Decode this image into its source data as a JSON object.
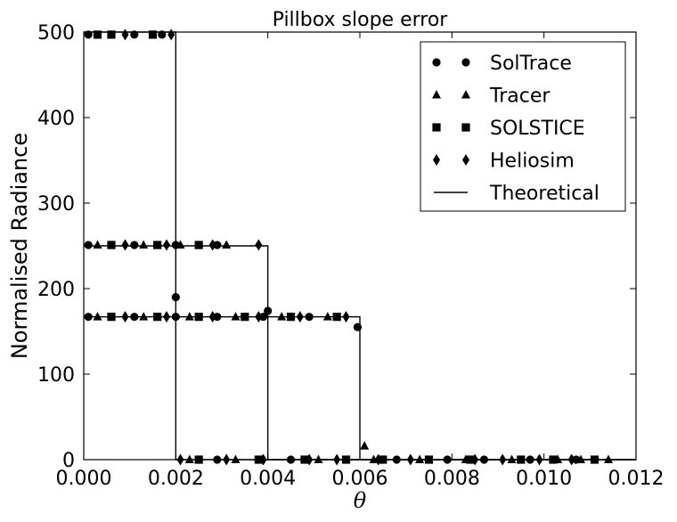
{
  "chart_data": {
    "type": "scatter",
    "title": "Pillbox slope error",
    "xlabel": "θ",
    "ylabel": "Normalised Radiance",
    "xlim": [
      0.0,
      0.012
    ],
    "ylim": [
      0,
      500
    ],
    "x_ticks": [
      "0.000",
      "0.002",
      "0.004",
      "0.006",
      "0.008",
      "0.010",
      "0.012"
    ],
    "y_ticks": [
      "0",
      "100",
      "200",
      "300",
      "400",
      "500"
    ],
    "grid": false,
    "legend_position": "top-right",
    "colors": {
      "marks": "#000000",
      "background": "#ffffff"
    },
    "series": [
      {
        "name": "SolTrace",
        "marker": "circle",
        "points": [
          [
            0.0001,
            497
          ],
          [
            0.0011,
            497
          ],
          [
            0.0017,
            497
          ],
          [
            0.0001,
            251
          ],
          [
            0.0011,
            251
          ],
          [
            0.002,
            251
          ],
          [
            0.0029,
            251
          ],
          [
            0.0001,
            167
          ],
          [
            0.0011,
            167
          ],
          [
            0.002,
            167
          ],
          [
            0.0029,
            167
          ],
          [
            0.0039,
            167
          ],
          [
            0.0049,
            167
          ],
          [
            0.002,
            190
          ],
          [
            0.004,
            174
          ],
          [
            0.00595,
            155
          ],
          [
            0.0029,
            0
          ],
          [
            0.0045,
            0
          ],
          [
            0.0068,
            0
          ],
          [
            0.0079,
            0
          ],
          [
            0.0087,
            0
          ],
          [
            0.0097,
            0
          ],
          [
            0.0107,
            0
          ]
        ]
      },
      {
        "name": "Tracer",
        "marker": "triangle",
        "points": [
          [
            0.0003,
            251
          ],
          [
            0.0013,
            251
          ],
          [
            0.0021,
            251
          ],
          [
            0.0031,
            251
          ],
          [
            0.0003,
            167
          ],
          [
            0.0013,
            167
          ],
          [
            0.0023,
            167
          ],
          [
            0.0033,
            167
          ],
          [
            0.0043,
            167
          ],
          [
            0.0053,
            167
          ],
          [
            0.0061,
            16
          ],
          [
            0.0023,
            0
          ],
          [
            0.0033,
            0
          ],
          [
            0.0051,
            0
          ],
          [
            0.0063,
            0
          ],
          [
            0.0073,
            0
          ],
          [
            0.0083,
            0
          ],
          [
            0.0093,
            0
          ],
          [
            0.0103,
            0
          ],
          [
            0.0108,
            0
          ],
          [
            0.0114,
            0
          ]
        ]
      },
      {
        "name": "SOLSTICE",
        "marker": "square",
        "points": [
          [
            0.0003,
            497
          ],
          [
            0.0006,
            497
          ],
          [
            0.0015,
            497
          ],
          [
            0.0006,
            251
          ],
          [
            0.0016,
            251
          ],
          [
            0.0025,
            251
          ],
          [
            0.0006,
            167
          ],
          [
            0.0016,
            167
          ],
          [
            0.0025,
            167
          ],
          [
            0.0035,
            167
          ],
          [
            0.0045,
            167
          ],
          [
            0.0055,
            167
          ],
          [
            0.0025,
            0
          ],
          [
            0.0038,
            0
          ],
          [
            0.0048,
            0
          ],
          [
            0.0057,
            0
          ],
          [
            0.0065,
            0
          ],
          [
            0.0075,
            0
          ],
          [
            0.0084,
            0
          ],
          [
            0.0095,
            0
          ],
          [
            0.0102,
            0
          ],
          [
            0.0111,
            0
          ]
        ]
      },
      {
        "name": "Heliosim",
        "marker": "diamond",
        "points": [
          [
            0.0009,
            497
          ],
          [
            0.0019,
            497
          ],
          [
            0.0009,
            251
          ],
          [
            0.0018,
            251
          ],
          [
            0.0028,
            251
          ],
          [
            0.0038,
            251
          ],
          [
            0.0009,
            167
          ],
          [
            0.0018,
            167
          ],
          [
            0.0028,
            167
          ],
          [
            0.0038,
            167
          ],
          [
            0.0047,
            167
          ],
          [
            0.0057,
            167
          ],
          [
            0.0021,
            0
          ],
          [
            0.0031,
            0
          ],
          [
            0.0039,
            0
          ],
          [
            0.0049,
            0
          ],
          [
            0.0055,
            0
          ],
          [
            0.0064,
            0
          ],
          [
            0.0071,
            0
          ],
          [
            0.0085,
            0
          ],
          [
            0.0091,
            0
          ],
          [
            0.0099,
            0
          ],
          [
            0.0106,
            0
          ]
        ]
      },
      {
        "name": "Theoretical",
        "marker": "line",
        "steps": [
          {
            "width": 0.002,
            "height": 500
          },
          {
            "width": 0.004,
            "height": 250
          },
          {
            "width": 0.006,
            "height": 167
          }
        ]
      }
    ]
  }
}
